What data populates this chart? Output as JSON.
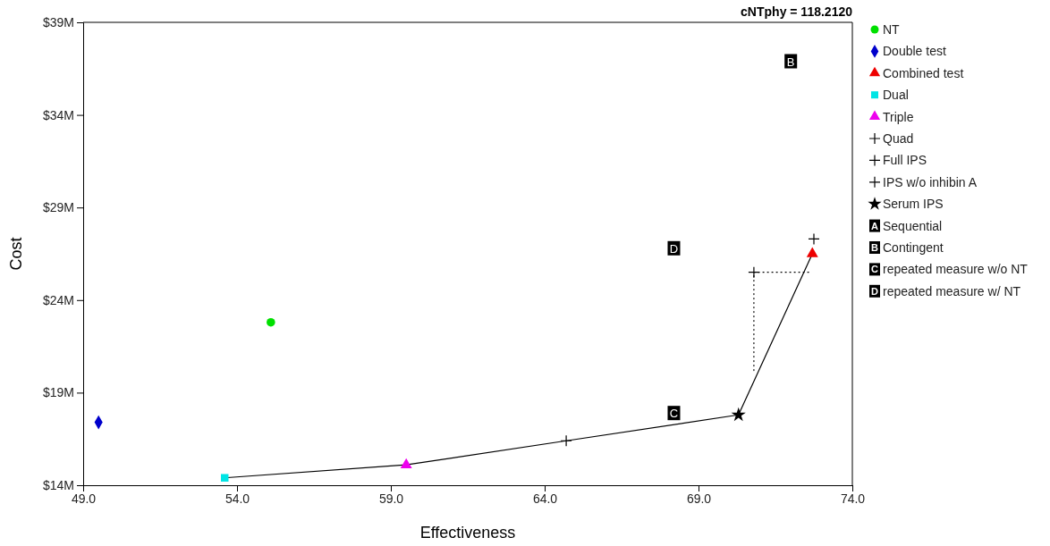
{
  "chart_data": {
    "type": "scatter",
    "title": "cNTphy = 118.2120",
    "xlabel": "Effectiveness",
    "ylabel": "Cost",
    "xlim": [
      49,
      74
    ],
    "xticks": [
      {
        "value": 49,
        "label": "49.0"
      },
      {
        "value": 54,
        "label": "54.0"
      },
      {
        "value": 59,
        "label": "59.0"
      },
      {
        "value": 64,
        "label": "64.0"
      },
      {
        "value": 69,
        "label": "69.0"
      },
      {
        "value": 74,
        "label": "74.0"
      }
    ],
    "ylim": [
      14,
      39
    ],
    "yticks": [
      {
        "value": 14,
        "label": "$14M"
      },
      {
        "value": 19,
        "label": "$19M"
      },
      {
        "value": 24,
        "label": "$24M"
      },
      {
        "value": 29,
        "label": "$29M"
      },
      {
        "value": 34,
        "label": "$34M"
      },
      {
        "value": 39,
        "label": "$39M"
      }
    ],
    "grid": false,
    "legend": "right",
    "series": [
      {
        "type": "line",
        "color": "#000000",
        "line_style": "solid",
        "marker": "none",
        "x": [
          53.6,
          59.5,
          64.7,
          70.3,
          72.7
        ],
        "values": [
          14.4,
          15.1,
          16.4,
          17.8,
          26.5
        ]
      },
      {
        "type": "line",
        "color": "#000000",
        "line_style": "dotted",
        "marker": "none",
        "x": [
          70.8,
          70.8,
          72.6
        ],
        "values": [
          20.2,
          25.5,
          25.5
        ]
      },
      {
        "name": "NT",
        "color": "#00e000",
        "marker": "circle",
        "x": [
          55.1
        ],
        "values": [
          22.8
        ]
      },
      {
        "name": "Double test",
        "color": "#0000cc",
        "marker": "diamond",
        "x": [
          49.5
        ],
        "values": [
          17.4
        ]
      },
      {
        "name": "Combined test",
        "color": "#ee0000",
        "marker": "triangle",
        "x": [
          72.7
        ],
        "values": [
          26.5
        ]
      },
      {
        "name": "Dual",
        "color": "#00e5e5",
        "marker": "square",
        "x": [
          53.6
        ],
        "values": [
          14.4
        ]
      },
      {
        "name": "Triple",
        "color": "#ee00ee",
        "marker": "triangle",
        "x": [
          59.5
        ],
        "values": [
          15.1
        ]
      },
      {
        "name": "Quad",
        "color": "#000000",
        "marker": "cross",
        "x": [
          64.7
        ],
        "values": [
          16.4
        ]
      },
      {
        "name": "Full IPS",
        "color": "#000000",
        "marker": "cross",
        "x": [
          72.75
        ],
        "values": [
          27.3
        ]
      },
      {
        "name": "IPS w/o inhibin A",
        "color": "#000000",
        "marker": "cross",
        "x": [
          70.8
        ],
        "values": [
          25.5
        ]
      },
      {
        "name": "Serum IPS",
        "color": "#000000",
        "marker": "star",
        "x": [
          70.3
        ],
        "values": [
          17.8
        ]
      },
      {
        "name": "Sequential",
        "color": "#000000",
        "x": [
          null
        ],
        "values": [
          null
        ],
        "value_labels": [
          "A"
        ]
      },
      {
        "name": "Contingent",
        "color": "#000000",
        "x": [
          72.0
        ],
        "values": [
          36.9
        ],
        "value_labels": [
          "B"
        ]
      },
      {
        "name": "repeated measure w/o NT",
        "color": "#000000",
        "x": [
          68.2
        ],
        "values": [
          17.9
        ],
        "value_labels": [
          "C"
        ]
      },
      {
        "name": "repeated measure w/ NT",
        "color": "#000000",
        "x": [
          68.2
        ],
        "values": [
          26.8
        ],
        "value_labels": [
          "D"
        ]
      }
    ]
  }
}
